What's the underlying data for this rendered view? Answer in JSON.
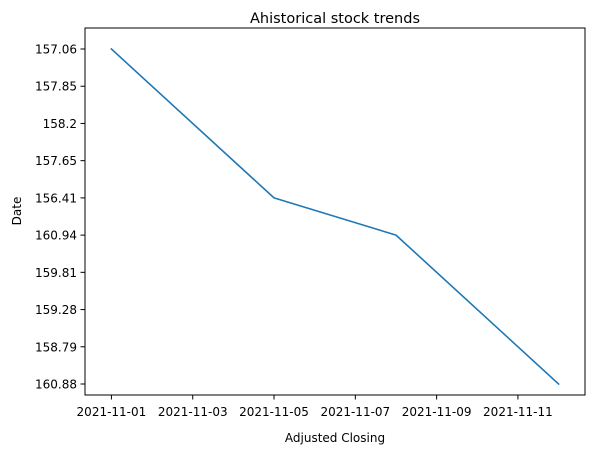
{
  "chart_data": {
    "type": "line",
    "title": "Ahistorical stock trends",
    "xlabel": "Adjusted Closing",
    "ylabel": "Date",
    "x_ticks": [
      "2021-11-01",
      "2021-11-03",
      "2021-11-05",
      "2021-11-07",
      "2021-11-09",
      "2021-11-11"
    ],
    "xlim": [
      "2021-10-31",
      "2021-11-13"
    ],
    "y_categories": [
      "157.06",
      "157.85",
      "158.2",
      "157.65",
      "156.41",
      "160.94",
      "159.81",
      "159.28",
      "158.79",
      "160.88"
    ],
    "series": [
      {
        "color": "#1f77b4",
        "points": [
          {
            "x": "2021-11-01",
            "y": "157.06"
          },
          {
            "x": "2021-11-05",
            "y": "156.41"
          },
          {
            "x": "2021-11-08",
            "y": "160.94"
          },
          {
            "x": "2021-11-12",
            "y": "160.88"
          }
        ]
      }
    ],
    "grid": false,
    "legend": "none"
  }
}
